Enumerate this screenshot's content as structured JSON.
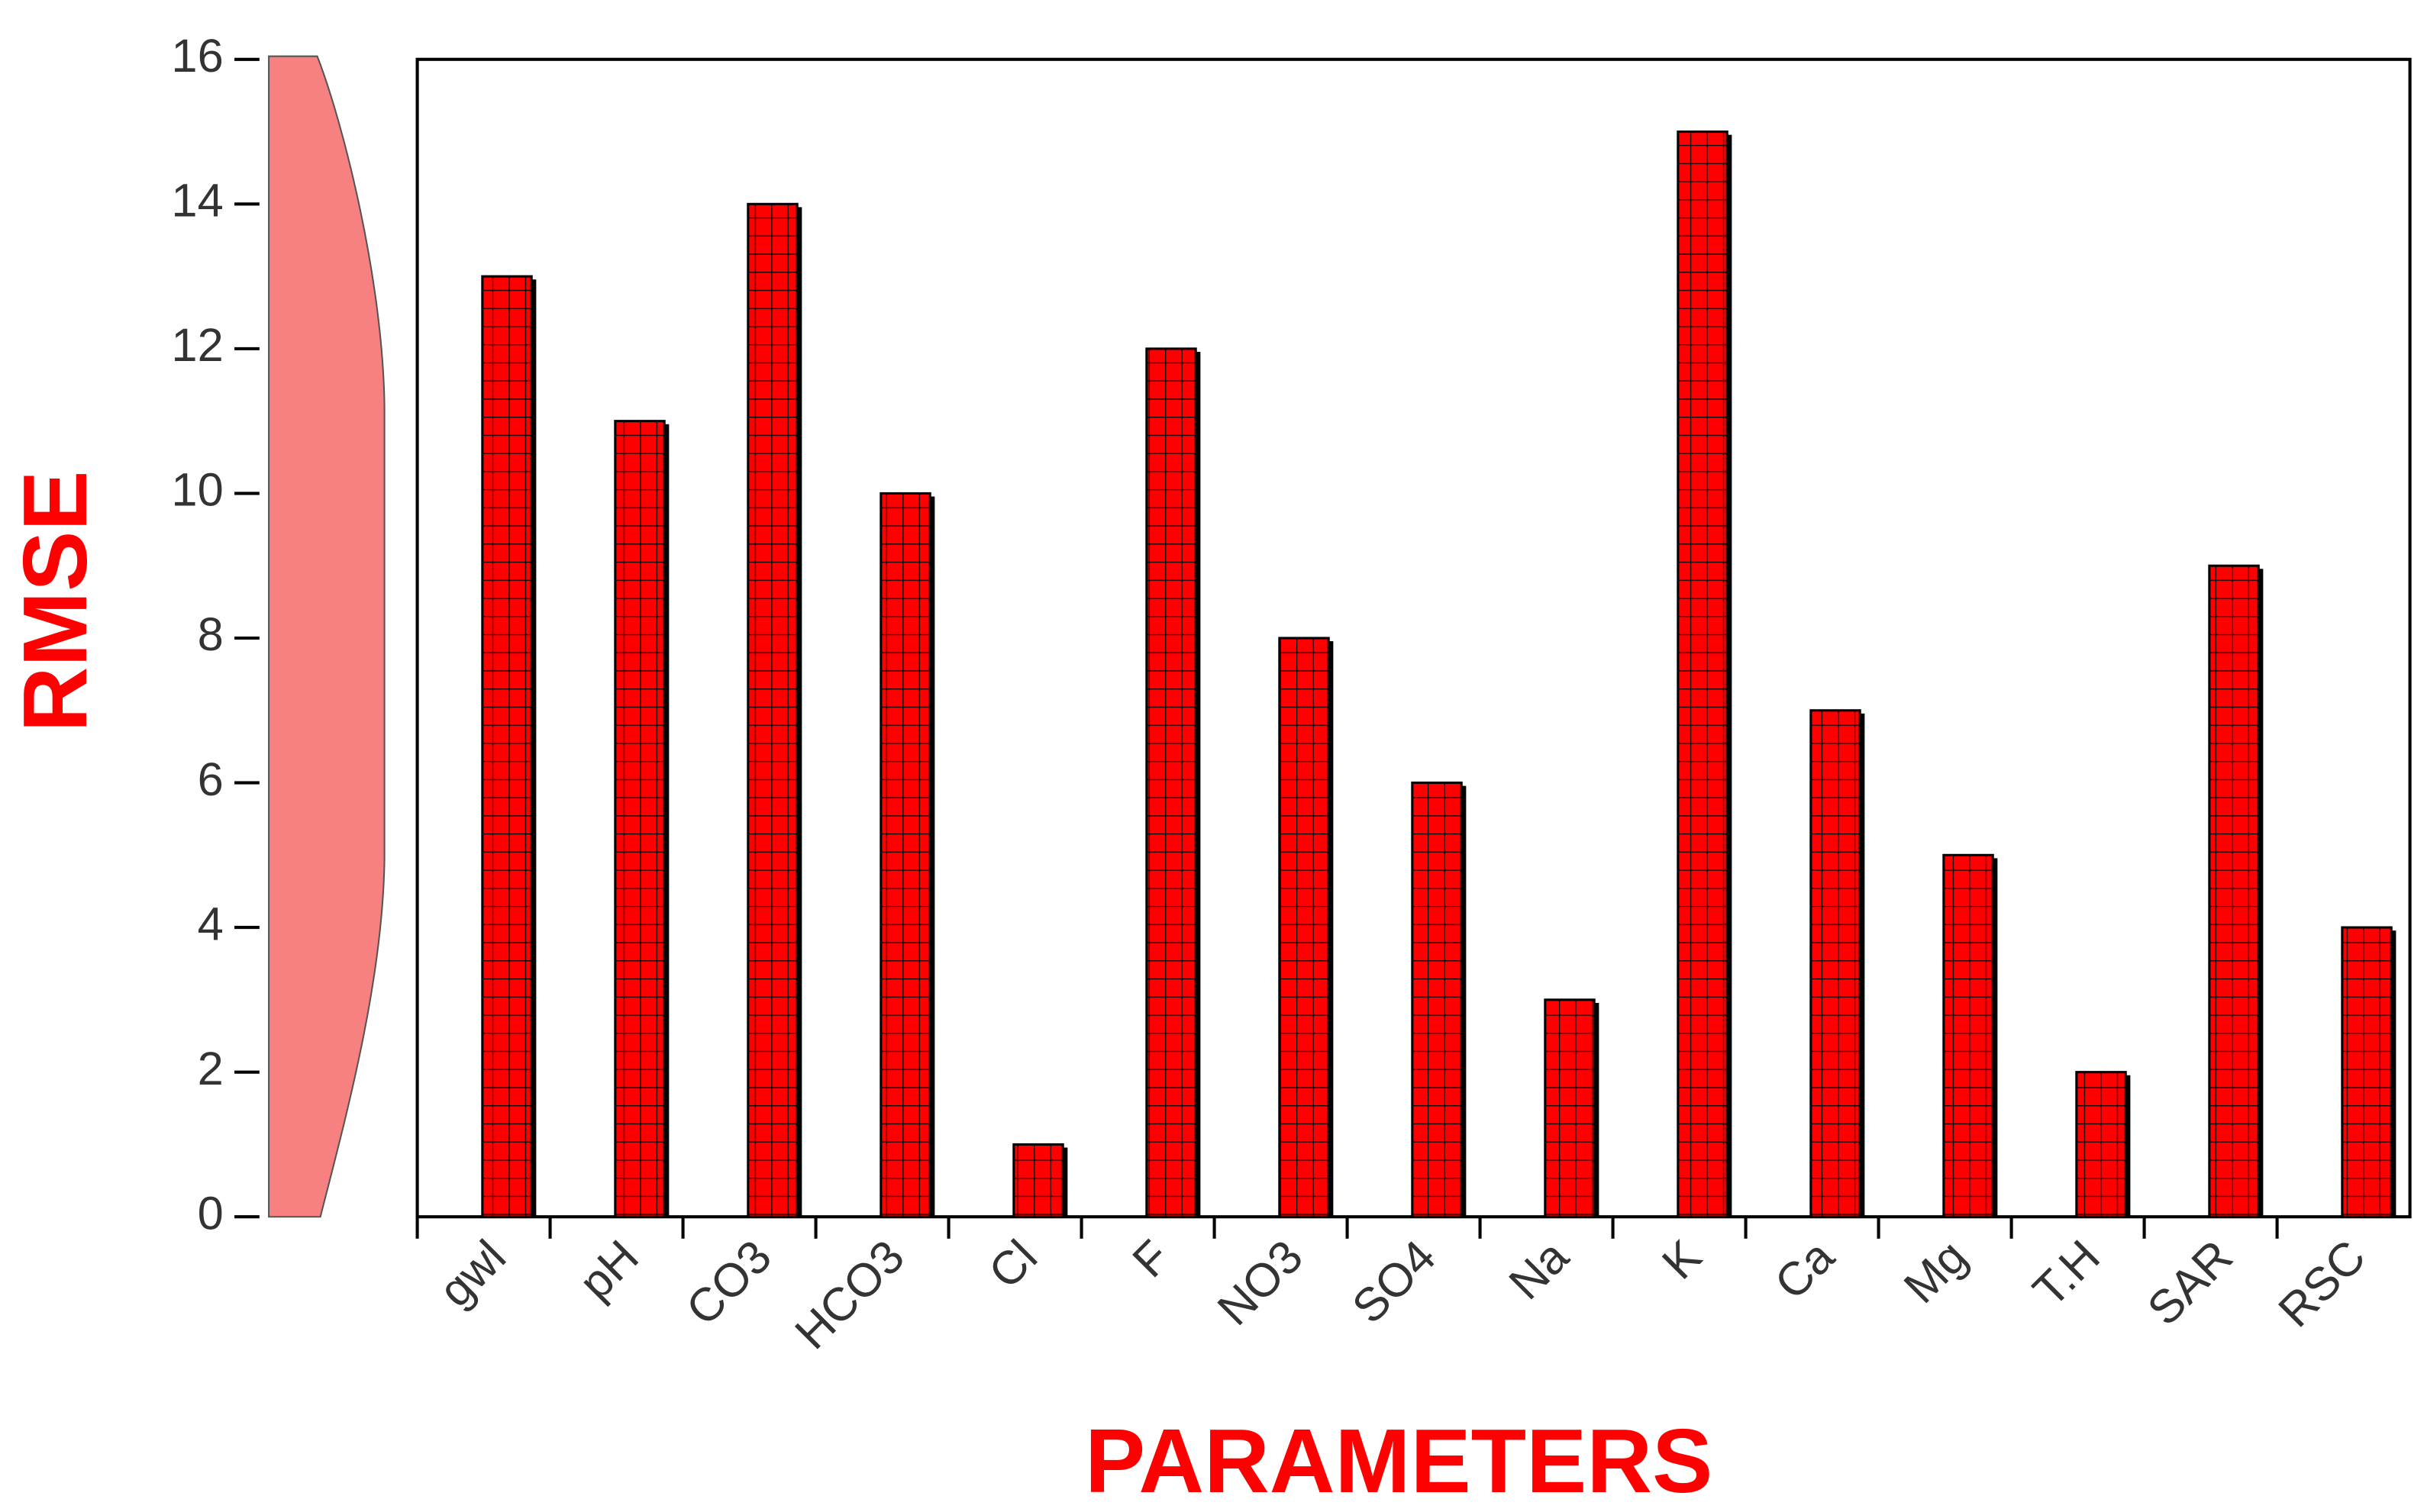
{
  "chart_data": {
    "type": "bar",
    "x_label": "PARAMETERS",
    "y_label": "RMSE",
    "categories": [
      "gwl",
      "pH",
      "CO3",
      "HCO3",
      "Cl",
      "F",
      "NO3",
      "SO4",
      "Na",
      "K",
      "Ca",
      "Mg",
      "T.H",
      "SAR",
      "RSC"
    ],
    "values": [
      13,
      11,
      14,
      10,
      1,
      12,
      8,
      6,
      3,
      15,
      7,
      5,
      2,
      9,
      4
    ],
    "color": "#ff0000",
    "ylim": [
      0,
      16
    ],
    "yticks": [
      0,
      2,
      4,
      6,
      8,
      10,
      12,
      14,
      16
    ]
  }
}
